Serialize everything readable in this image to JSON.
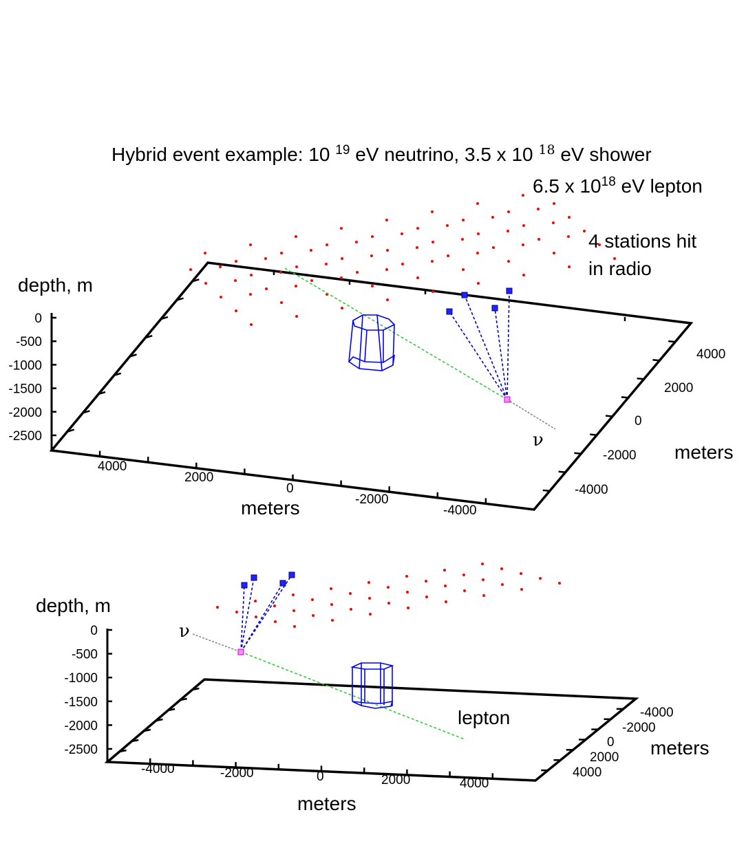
{
  "chart_data": [
    {
      "type": "scatter",
      "view": "top",
      "title_parts": [
        "Hybrid event example: 10 ",
        "19",
        " eV neutrino, 3.5 x 10 ",
        "18",
        " eV shower"
      ],
      "subtitle_parts": [
        "6.5 x 10",
        "18",
        " eV lepton"
      ],
      "annotation": [
        "4 stations hit",
        "in radio"
      ],
      "zlabel": "depth, m",
      "xlabel": "meters",
      "ylabel": "meters",
      "z_ticks": [
        "0",
        "-500",
        "-1000",
        "-1500",
        "-2000",
        "-2500"
      ],
      "x_ticks": [
        "4000",
        "2000",
        "0",
        "-2000",
        "-4000"
      ],
      "y_ticks": [
        "4000",
        "2000",
        "0",
        "-2000",
        "-4000"
      ],
      "neutrino_label": "ν",
      "colors": {
        "stations": "#ff0000",
        "hit_stations": "#0000ff",
        "shower_track": "#00cc00",
        "neutrino_track": "#777777",
        "rays": "#0000cc",
        "detector": "#0000ff",
        "vertex": "#ff00ff"
      }
    },
    {
      "type": "scatter",
      "view": "side",
      "zlabel": "depth, m",
      "xlabel": "meters",
      "ylabel": "meters",
      "lepton_label": "lepton",
      "z_ticks": [
        "0",
        "-500",
        "-1000",
        "-1500",
        "-2000",
        "-2500"
      ],
      "x_ticks": [
        "-4000",
        "-2000",
        "0",
        "2000",
        "4000"
      ],
      "y_ticks": [
        "-4000",
        "-2000",
        "0",
        "2000",
        "4000"
      ],
      "neutrino_label": "ν"
    }
  ]
}
